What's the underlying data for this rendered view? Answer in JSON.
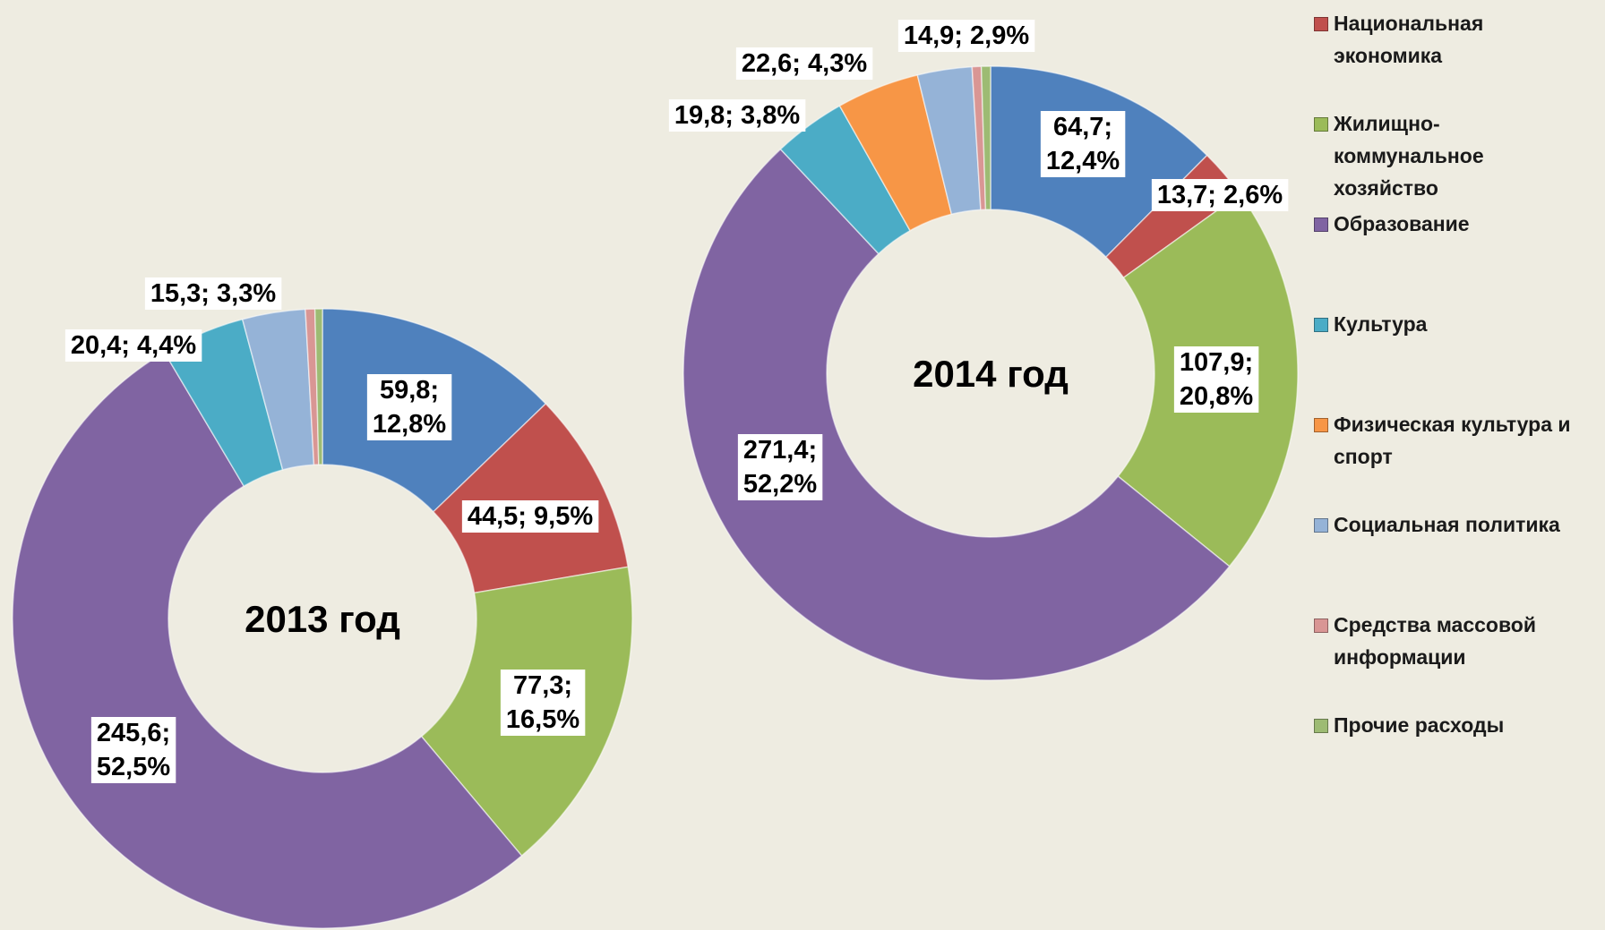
{
  "chart_data": {
    "type": "donut",
    "categories": [
      null,
      "Национальная экономика",
      "Жилищно-коммунальное хозяйство",
      "Образование",
      "Культура",
      "Физическая культура и спорт",
      "Социальная политика",
      "Средства массовой информации",
      "Прочие расходы"
    ],
    "colors": [
      "#4f81bd",
      "#c0504d",
      "#9bbb59",
      "#8064a2",
      "#4bacc6",
      "#f79646",
      "#95b3d7",
      "#d99694",
      "#9dbb73"
    ],
    "series": [
      {
        "name": "2013 год",
        "values": [
          59.8,
          44.5,
          77.3,
          245.6,
          20.4,
          null,
          15.3,
          2.3,
          1.8
        ],
        "value_labels": [
          "59,8;\n12,8%",
          "44,5; 9,5%",
          "77,3;\n16,5%",
          "245,6;\n52,5%",
          "20,4; 4,4%",
          null,
          "15,3; 3,3%",
          null,
          null
        ]
      },
      {
        "name": "2014 год",
        "values": [
          64.7,
          13.7,
          107.9,
          271.4,
          19.8,
          22.6,
          14.9,
          2.5,
          2.5
        ],
        "value_labels": [
          "64,7;\n12,4%",
          "13,7; 2,6%",
          "107,9;\n20,8%",
          "271,4;\n52,2%",
          "19,8; 3,8%",
          "22,6; 4,3%",
          "14,9; 2,9%",
          null,
          null
        ]
      }
    ]
  }
}
